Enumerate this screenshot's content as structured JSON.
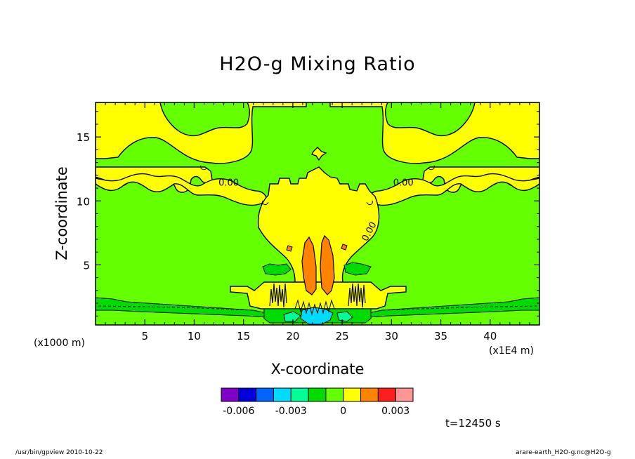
{
  "chart_data": {
    "type": "heatmap",
    "title": "H2O-g Mixing Ratio",
    "xlabel": "X-coordinate",
    "ylabel": "Z-coordinate",
    "x_unit_label": "(x1E4 m)",
    "y_unit_label": "(x1000 m)",
    "xlim": [
      0,
      45
    ],
    "ylim": [
      0.3,
      17.7
    ],
    "x_ticks": [
      5,
      10,
      15,
      20,
      25,
      30,
      35,
      40
    ],
    "y_ticks": [
      5,
      10,
      15
    ],
    "contour_labels": [
      {
        "text": "0.00",
        "x": 13.5,
        "y": 11.2
      },
      {
        "text": "0.00",
        "x": 31.2,
        "y": 11.2
      },
      {
        "text": "0.00",
        "x": 28.0,
        "y": 7.5
      }
    ],
    "colorbar": {
      "colors": [
        "#7f00c8",
        "#0000dc",
        "#0064ff",
        "#00dcff",
        "#00ff96",
        "#00dc00",
        "#64ff00",
        "#ffff00",
        "#ff8200",
        "#ff1e1e",
        "#ff9696"
      ],
      "tick_labels": [
        "-0.006",
        "-0.003",
        "0",
        "0.003"
      ],
      "tick_positions": [
        1,
        4,
        7,
        10
      ]
    },
    "annotation": "t=12450 s"
  },
  "footer": {
    "left": "/usr/bin/gpview   2010-10-22",
    "right": "arare-earth_H2O-g.nc@H2O-g"
  }
}
